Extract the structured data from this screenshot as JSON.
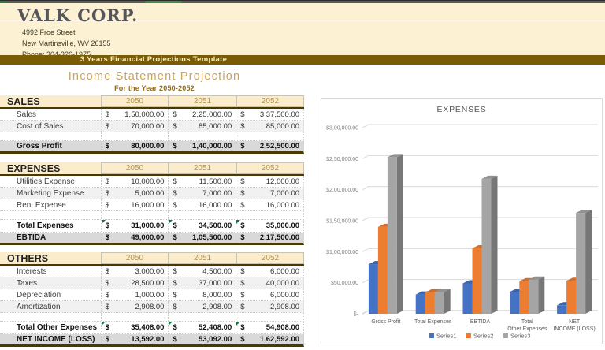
{
  "colors": {
    "cream_header": "#FCF1D2",
    "banner_brown": "#7A5C04",
    "table_header_fill": "#FBEDCB",
    "year_text": "#B29455",
    "title_gold": "#C6A462",
    "subtitle_brown": "#8E6E1E",
    "total_row_gray": "#D9D9D9",
    "thick_border": "#4A3900",
    "series1_blue": "#4472C4",
    "series2_orange": "#ED7D31",
    "series3_gray": "#A5A5A5",
    "flag_green": "#1E7145"
  },
  "top_header": {
    "company": "VALK CORP.",
    "address_line1": "4992 Froe Street",
    "address_line2": "New Martinsville, WV 26155",
    "phone": "Phone: 304-326-1975",
    "banner": "3 Years Financial Projections Template"
  },
  "sheet": {
    "title": "Income Statement Projection",
    "subtitle": "For the Year 2050-2052"
  },
  "years": [
    "2050",
    "2051",
    "2052"
  ],
  "currency_symbol": "$",
  "tables": [
    {
      "section": "SALES",
      "rows": [
        {
          "label": "Sales",
          "type": "data",
          "values": [
            "1,50,000.00",
            "2,25,000.00",
            "3,37,500.00"
          ]
        },
        {
          "label": "Cost of Sales",
          "type": "data-alt",
          "values": [
            "70,000.00",
            "85,000.00",
            "85,000.00"
          ]
        },
        {
          "label": "",
          "type": "spacer",
          "values": [
            "",
            "",
            ""
          ]
        },
        {
          "label": "Gross Profit",
          "type": "total-gray",
          "values": [
            "80,000.00",
            "1,40,000.00",
            "2,52,500.00"
          ]
        }
      ]
    },
    {
      "section": "EXPENSES",
      "rows": [
        {
          "label": "Utilities Expense",
          "type": "data",
          "values": [
            "10,000.00",
            "11,500.00",
            "12,000.00"
          ]
        },
        {
          "label": "Marketing Expense",
          "type": "data-alt",
          "values": [
            "5,000.00",
            "7,000.00",
            "7,000.00"
          ]
        },
        {
          "label": "Rent Expense",
          "type": "data",
          "values": [
            "16,000.00",
            "16,000.00",
            "16,000.00"
          ]
        },
        {
          "label": "",
          "type": "spacer",
          "values": [
            "",
            "",
            ""
          ]
        },
        {
          "label": "Total Expenses",
          "type": "total",
          "flags": true,
          "values": [
            "31,000.00",
            "34,500.00",
            "35,000.00"
          ]
        },
        {
          "label": "EBTIDA",
          "type": "total-gray",
          "values": [
            "49,000.00",
            "1,05,500.00",
            "2,17,500.00"
          ]
        }
      ]
    },
    {
      "section": "OTHERS",
      "rows": [
        {
          "label": "Interests",
          "type": "data",
          "values": [
            "3,000.00",
            "4,500.00",
            "6,000.00"
          ]
        },
        {
          "label": "Taxes",
          "type": "data-alt",
          "values": [
            "28,500.00",
            "37,000.00",
            "40,000.00"
          ]
        },
        {
          "label": "Depreciation",
          "type": "data",
          "values": [
            "1,000.00",
            "8,000.00",
            "6,000.00"
          ]
        },
        {
          "label": "Amortization",
          "type": "data-alt",
          "values": [
            "2,908.00",
            "2,908.00",
            "2,908.00"
          ]
        },
        {
          "label": "",
          "type": "spacer",
          "values": [
            "",
            "",
            ""
          ]
        },
        {
          "label": "Total Other Expenses",
          "type": "total",
          "flags": true,
          "values": [
            "35,408.00",
            "52,408.00",
            "54,908.00"
          ]
        },
        {
          "label": "NET INCOME (LOSS)",
          "type": "total-gray",
          "values": [
            "13,592.00",
            "53,092.00",
            "1,62,592.00"
          ]
        }
      ]
    }
  ],
  "chart_data": {
    "type": "bar",
    "style": "3d-clustered-column",
    "title": "EXPENSES",
    "xlabel": "",
    "ylabel": "",
    "categories": [
      "Gross Profit",
      "Total Expenses",
      "EBTIDA",
      "Total Other Expenses",
      "NET INCOME (LOSS)"
    ],
    "series": [
      {
        "name": "Series1",
        "color": "#4472C4",
        "values": [
          80000,
          31000,
          49000,
          35408,
          13592
        ]
      },
      {
        "name": "Series2",
        "color": "#ED7D31",
        "values": [
          140000,
          34500,
          105500,
          52408,
          53092
        ]
      },
      {
        "name": "Series3",
        "color": "#A5A5A5",
        "values": [
          252500,
          35000,
          217500,
          54908,
          162592
        ]
      }
    ],
    "ylim": [
      0,
      300000
    ],
    "ytick_step": 50000,
    "ytick_labels": [
      "$-",
      "$50,000.00",
      "$1,00,000.00",
      "$1,50,000.00",
      "$2,00,000.00",
      "$2,50,000.00",
      "$3,00,000.00"
    ],
    "grid": true,
    "legend_position": "bottom"
  }
}
